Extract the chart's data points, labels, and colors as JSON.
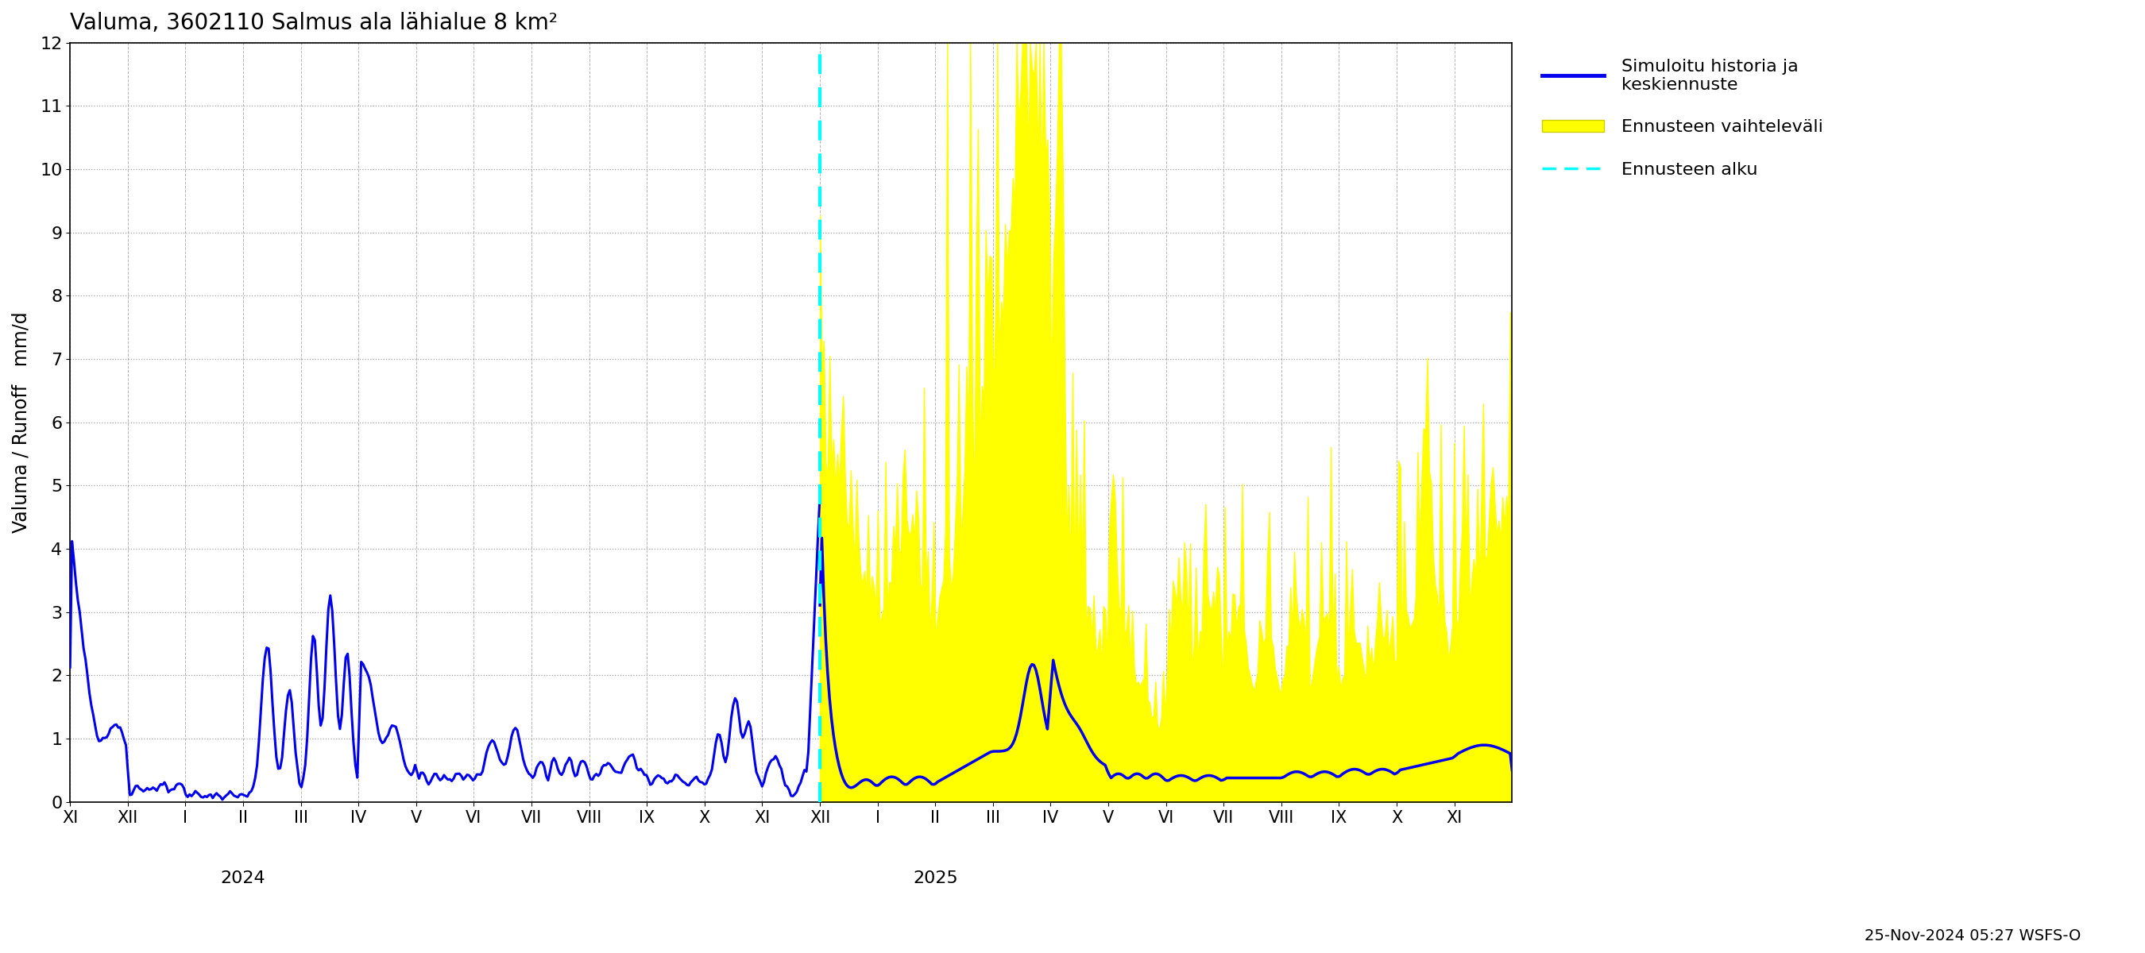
{
  "title": "Valuma, 3602110 Salmus ala lähialue 8 km²",
  "ylabel": "Valuma / Runoff   mm/d",
  "ylim": [
    0,
    12
  ],
  "yticks": [
    0,
    1,
    2,
    3,
    4,
    5,
    6,
    7,
    8,
    9,
    10,
    11,
    12
  ],
  "date_label": "25-Nov-2024 05:27 WSFS-O",
  "background_color": "#ffffff",
  "grid_color": "#999999",
  "months_history": [
    "XI",
    "XII",
    "I",
    "II",
    "III",
    "IV",
    "V",
    "VI",
    "VII",
    "VIII",
    "IX",
    "X",
    "XI"
  ],
  "months_forecast": [
    "XII",
    "I",
    "II",
    "III",
    "IV",
    "V",
    "VI",
    "VII",
    "VIII",
    "IX",
    "X",
    "XI"
  ],
  "n_hist_months": 13,
  "n_fore_months": 12,
  "days_per_month": 30,
  "blue_color": "#0000ee",
  "yellow_color": "#ffff00",
  "cyan_color": "#00ffff",
  "legend_label_history": "Simuloitu historia ja\nkeskiennuste",
  "legend_label_envelope": "Ennusteen vaihteleväli",
  "legend_label_start": "Ennusteen alku"
}
